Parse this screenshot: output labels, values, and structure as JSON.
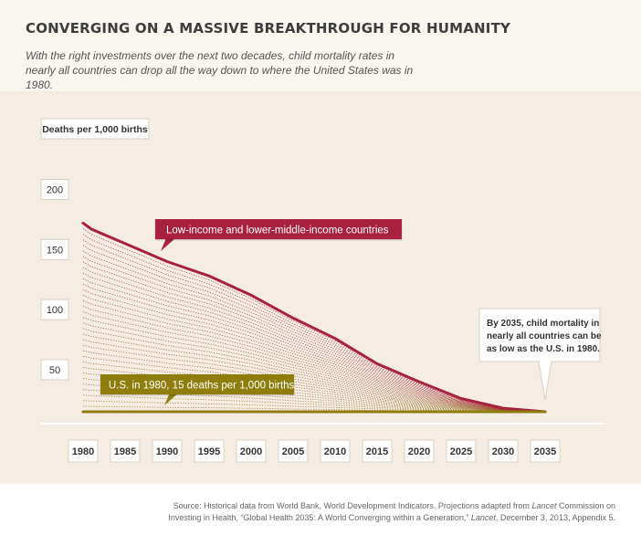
{
  "header": {
    "title": "CONVERGING ON A MASSIVE BREAKTHROUGH FOR HUMANITY",
    "subtitle": "With the right investments over the next two decades, child mortality rates in nearly all countries can drop all the way down to where the United States was in 1980."
  },
  "chart_data": {
    "type": "line",
    "title": "",
    "ylabel": "Deaths per 1,000 births",
    "xlabel": "",
    "x": [
      1980,
      1981,
      1985,
      1990,
      1995,
      2000,
      2005,
      2010,
      2015,
      2020,
      2025,
      2030,
      2035
    ],
    "x_ticks": [
      "1980",
      "1985",
      "1990",
      "1995",
      "2000",
      "2005",
      "2010",
      "2015",
      "2020",
      "2025",
      "2030",
      "2035"
    ],
    "y_ticks": [
      "50",
      "100",
      "150",
      "200"
    ],
    "xlim": [
      1980,
      2035
    ],
    "ylim": [
      0,
      210
    ],
    "series": [
      {
        "name": "Low-income and lower-middle-income countries",
        "color": "#a8213f",
        "values": [
          172,
          167,
          155,
          140,
          128,
          112,
          93,
          76,
          55,
          40,
          26,
          18,
          15
        ]
      },
      {
        "name": "U.S. in 1980, 15 deaths per 1,000 births",
        "color": "#8f7d0f",
        "values": [
          15,
          15,
          15,
          15,
          15,
          15,
          15,
          15,
          15,
          15,
          15,
          15,
          15
        ]
      }
    ],
    "annotations": {
      "low_income_label": "Low-income and lower-middle-income countries",
      "us_label": "U.S. in 1980, 15 deaths per 1,000 births",
      "callout_line1": "By 2035, child mortality in",
      "callout_line2": "nearly all countries can be",
      "callout_line3": "as low as the U.S. in 1980."
    },
    "grid": false
  },
  "footer": {
    "source_line1_pre": "Source: Historical data from World Bank, World Development Indicators. Projections adapted from ",
    "source_line1_em": "Lancet",
    "source_line1_post": " Commission on",
    "source_line2_pre": "Investing in Health, “Global Health 2035: A World Converging within a Generation,” ",
    "source_line2_em": "Lancet",
    "source_line2_post": ", December 3, 2013, Appendix 5."
  }
}
